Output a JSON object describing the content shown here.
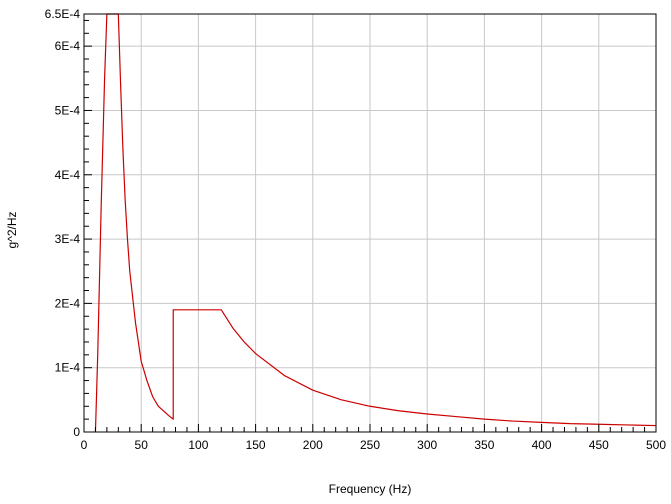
{
  "chart_data": {
    "type": "line",
    "title": "",
    "xlabel": "Frequency (Hz)",
    "ylabel": "g^2/Hz",
    "xlim": [
      0,
      500
    ],
    "ylim": [
      0,
      0.00065
    ],
    "grid": true,
    "x_ticks": [
      0,
      50,
      100,
      150,
      200,
      250,
      300,
      350,
      400,
      450,
      500
    ],
    "x_tick_labels": [
      "0",
      "50",
      "100",
      "150",
      "200",
      "250",
      "300",
      "350",
      "400",
      "450",
      "500"
    ],
    "y_ticks": [
      0,
      0.0001,
      0.0002,
      0.0003,
      0.0004,
      0.0005,
      0.0006,
      0.00065
    ],
    "y_tick_labels": [
      "0",
      "1E-4",
      "2E-4",
      "3E-4",
      "4E-4",
      "5E-4",
      "6E-4",
      "6.5E-4"
    ],
    "series": [
      {
        "color": "#cc0000",
        "x": [
          10,
          12,
          15,
          18,
          20,
          22,
          24,
          26,
          28,
          30,
          32,
          34,
          36,
          38,
          40,
          45,
          50,
          55,
          60,
          65,
          70,
          75,
          78,
          78,
          90,
          100,
          110,
          120,
          130,
          140,
          150,
          175,
          200,
          225,
          250,
          275,
          300,
          325,
          350,
          375,
          400,
          425,
          450,
          475,
          500
        ],
        "y": [
          0,
          0.00012,
          0.00035,
          0.00055,
          0.00065,
          0.00065,
          0.00065,
          0.00065,
          0.00065,
          0.00065,
          0.00054,
          0.00044,
          0.00036,
          0.0003,
          0.00025,
          0.00017,
          0.00011,
          8e-05,
          5.5e-05,
          4e-05,
          3.2e-05,
          2.4e-05,
          2e-05,
          0.00019,
          0.00019,
          0.00019,
          0.00019,
          0.00019,
          0.000162,
          0.00014,
          0.000122,
          8.8e-05,
          6.5e-05,
          5e-05,
          4e-05,
          3.3e-05,
          2.8e-05,
          2.4e-05,
          2e-05,
          1.7e-05,
          1.5e-05,
          1.3e-05,
          1.2e-05,
          1.1e-05,
          1e-05
        ]
      }
    ]
  }
}
